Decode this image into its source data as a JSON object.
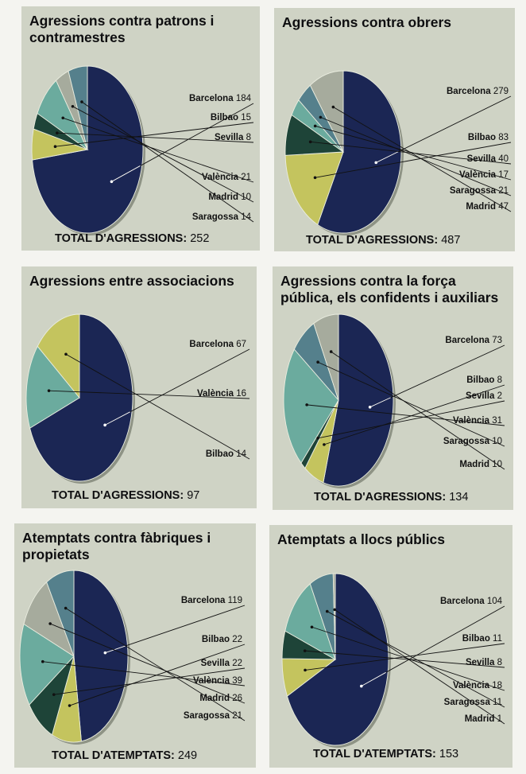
{
  "colors": {
    "panel_bg": "#cfd3c5",
    "Barcelona": "#1b2654",
    "Bilbao": "#c4c45e",
    "Sevilla": "#1e4438",
    "València": "#6bab9e",
    "Madrid": "#a6ab9d",
    "Saragossa": "#55808c"
  },
  "chart_data": [
    {
      "type": "pie",
      "title": "Agressions contra patrons i contramestres",
      "total_label": "TOTAL D'AGRESSIONS:",
      "total_value": "252",
      "slices": [
        {
          "label": "Barcelona",
          "value": 184
        },
        {
          "label": "Bilbao",
          "value": 15
        },
        {
          "label": "Sevilla",
          "value": 8
        },
        {
          "label": "València",
          "value": 21
        },
        {
          "label": "Madrid",
          "value": 10
        },
        {
          "label": "Saragossa",
          "value": 14
        }
      ]
    },
    {
      "type": "pie",
      "title": "Agressions contra obrers",
      "total_label": "TOTAL D'AGRESSIONS:",
      "total_value": "487",
      "slices": [
        {
          "label": "Barcelona",
          "value": 279
        },
        {
          "label": "Bilbao",
          "value": 83
        },
        {
          "label": "Sevilla",
          "value": 40
        },
        {
          "label": "València",
          "value": 17
        },
        {
          "label": "Saragossa",
          "value": 21
        },
        {
          "label": "Madrid",
          "value": 47
        }
      ]
    },
    {
      "type": "pie",
      "title": "Agressions entre associacions",
      "total_label": "TOTAL D'AGRESSIONS:",
      "total_value": "97",
      "slices": [
        {
          "label": "Barcelona",
          "value": 67
        },
        {
          "label": "València",
          "value": 16
        },
        {
          "label": "Bilbao",
          "value": 14
        }
      ]
    },
    {
      "type": "pie",
      "title": "Agressions contra la força pública, els confidents i auxiliars",
      "total_label": "TOTAL D'AGRESSIONS:",
      "total_value": "134",
      "slices": [
        {
          "label": "Barcelona",
          "value": 73
        },
        {
          "label": "Bilbao",
          "value": 8
        },
        {
          "label": "Sevilla",
          "value": 2
        },
        {
          "label": "València",
          "value": 31
        },
        {
          "label": "Saragossa",
          "value": 10
        },
        {
          "label": "Madrid",
          "value": 10
        }
      ]
    },
    {
      "type": "pie",
      "title": "Atemptats contra fàbriques i propietats",
      "total_label": "TOTAL D'ATEMPTATS:",
      "total_value": "249",
      "slices": [
        {
          "label": "Barcelona",
          "value": 119
        },
        {
          "label": "Bilbao",
          "value": 22
        },
        {
          "label": "Sevilla",
          "value": 22
        },
        {
          "label": "València",
          "value": 39
        },
        {
          "label": "Madrid",
          "value": 26
        },
        {
          "label": "Saragossa",
          "value": 21
        }
      ]
    },
    {
      "type": "pie",
      "title": "Atemptats a llocs públics",
      "total_label": "TOTAL D'ATEMPTATS:",
      "total_value": "153",
      "slices": [
        {
          "label": "Barcelona",
          "value": 104
        },
        {
          "label": "Bilbao",
          "value": 11
        },
        {
          "label": "Sevilla",
          "value": 8
        },
        {
          "label": "València",
          "value": 18
        },
        {
          "label": "Saragossa",
          "value": 11
        },
        {
          "label": "Madrid",
          "value": 1
        }
      ]
    }
  ]
}
